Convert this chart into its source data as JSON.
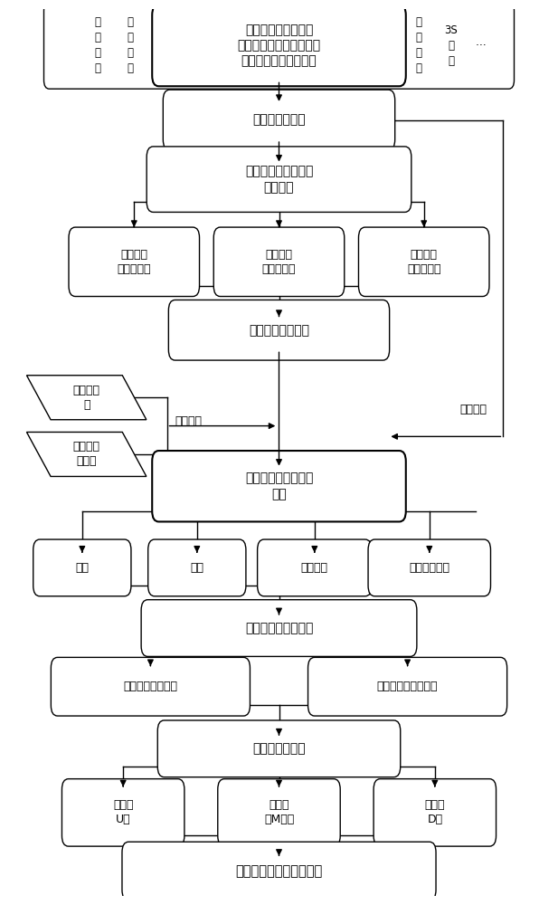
{
  "bg_color": "#ffffff",
  "line_color": "#000000",
  "nodes": {
    "top_env_inner": "泥石流孕灾环境（断\n裂、地质、地形、固体物\n源特征、水动力特征）",
    "left1": "工\n程\n地\n质",
    "left2": "水\n文\n地\n质",
    "right1": "岩\n土\n力\n学",
    "right2": "3S\n技\n术",
    "right3": "…",
    "basin": "泥石流流域模型",
    "threshold": "泥石流临界能量和能\n量聚集量",
    "model1": "孕育过程\n动力学模型",
    "model2": "发生过程\n动力学模型",
    "model3": "运动过程\n动力学模型",
    "coupling": "动力学模型的耦合",
    "para1": "泥石流规\n模",
    "para2": "泥石流属\n性参数",
    "boundary": "边界条件",
    "initial": "初始条件",
    "simulation": "泥石流运动过程数值\n模拟",
    "vel": "流速",
    "depth": "泥深",
    "flood": "泛滥范围",
    "prop": "属性、规模等",
    "energy_calc": "泥石流能量计算方法",
    "energy_draw": "泥石流能谱图绘制",
    "energy_anal": "泥石流能谱特征分析",
    "energy_zone": "泥石流能谱分区",
    "zone1": "聚涨区\nU区",
    "zone2": "突变区\n（M区）",
    "zone3": "衰减区\nD区",
    "final": "泥石流综合减灾技术体系"
  }
}
